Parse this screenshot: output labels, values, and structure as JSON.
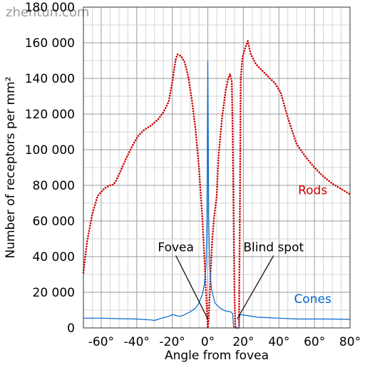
{
  "watermark": "zhentun.com",
  "chart_data": {
    "type": "line",
    "xlabel": "Angle from fovea",
    "ylabel": "Number of receptors per mm²",
    "xlim": [
      -70,
      80
    ],
    "ylim": [
      0,
      180000
    ],
    "x_ticks": [
      -60,
      -40,
      -20,
      0,
      20,
      40,
      60,
      80
    ],
    "x_tick_labels": [
      "-60°",
      "-40°",
      "-20°",
      "0°",
      "20°",
      "40°",
      "60°",
      "80°"
    ],
    "y_ticks": [
      0,
      20000,
      40000,
      60000,
      80000,
      100000,
      120000,
      140000,
      160000,
      180000
    ],
    "y_tick_labels": [
      "0",
      "20 000",
      "40 000",
      "60 000",
      "80 000",
      "100 000",
      "120 000",
      "140 000",
      "160 000",
      "180 000"
    ],
    "grid": true,
    "series": [
      {
        "name": "Rods",
        "color": "#cc0000",
        "style": "dotted",
        "points": [
          [
            -70,
            31000
          ],
          [
            -68,
            48000
          ],
          [
            -65,
            64000
          ],
          [
            -62,
            74000
          ],
          [
            -58,
            78500
          ],
          [
            -55,
            80000
          ],
          [
            -53,
            80500
          ],
          [
            -52,
            82000
          ],
          [
            -50,
            86000
          ],
          [
            -46,
            95000
          ],
          [
            -42,
            103000
          ],
          [
            -39,
            108000
          ],
          [
            -36,
            111000
          ],
          [
            -32,
            113500
          ],
          [
            -28,
            117000
          ],
          [
            -25,
            121000
          ],
          [
            -22,
            127000
          ],
          [
            -20,
            138000
          ],
          [
            -19,
            145000
          ],
          [
            -18,
            151000
          ],
          [
            -17,
            153500
          ],
          [
            -15,
            152500
          ],
          [
            -13,
            149000
          ],
          [
            -11,
            141000
          ],
          [
            -9,
            128000
          ],
          [
            -7,
            112000
          ],
          [
            -5,
            90000
          ],
          [
            -3,
            60000
          ],
          [
            -1.5,
            30000
          ],
          [
            -0.5,
            8000
          ],
          [
            0,
            0
          ],
          [
            0.5,
            5000
          ],
          [
            1.5,
            30000
          ],
          [
            2.5,
            50000
          ],
          [
            3.5,
            62000
          ],
          [
            5,
            74000
          ],
          [
            6,
            96000
          ],
          [
            8,
            118000
          ],
          [
            10,
            133000
          ],
          [
            11.5,
            140000
          ],
          [
            12.5,
            142500
          ],
          [
            13.5,
            138000
          ],
          [
            14,
            110000
          ],
          [
            14.5,
            60000
          ],
          [
            15,
            20000
          ],
          [
            15.5,
            0
          ],
          [
            17.5,
            0
          ],
          [
            18,
            60000
          ],
          [
            18.5,
            140000
          ],
          [
            19.5,
            152000
          ],
          [
            21,
            157000
          ],
          [
            22.5,
            161000
          ],
          [
            24,
            154000
          ],
          [
            27,
            148000
          ],
          [
            32,
            143000
          ],
          [
            38,
            137000
          ],
          [
            41,
            132000
          ],
          [
            45,
            118000
          ],
          [
            50,
            103000
          ],
          [
            55,
            96000
          ],
          [
            60,
            90000
          ],
          [
            65,
            85000
          ],
          [
            70,
            81000
          ],
          [
            75,
            78000
          ],
          [
            80,
            75000
          ]
        ]
      },
      {
        "name": "Cones",
        "color": "#0066cc",
        "style": "solid",
        "points": [
          [
            -70,
            5500
          ],
          [
            -60,
            5500
          ],
          [
            -50,
            5200
          ],
          [
            -40,
            5000
          ],
          [
            -32,
            4500
          ],
          [
            -30,
            4200
          ],
          [
            -26,
            5500
          ],
          [
            -22,
            6500
          ],
          [
            -20,
            7500
          ],
          [
            -18,
            7000
          ],
          [
            -16,
            6500
          ],
          [
            -14,
            7000
          ],
          [
            -10,
            9000
          ],
          [
            -7,
            11000
          ],
          [
            -5,
            14000
          ],
          [
            -3,
            19000
          ],
          [
            -2,
            24000
          ],
          [
            -1,
            35000
          ],
          [
            -0.5,
            60000
          ],
          [
            0,
            150000
          ],
          [
            0.5,
            60000
          ],
          [
            1,
            35000
          ],
          [
            2,
            22000
          ],
          [
            4,
            14000
          ],
          [
            7,
            11000
          ],
          [
            10,
            9500
          ],
          [
            13,
            9000
          ],
          [
            14,
            8000
          ],
          [
            14.5,
            0
          ],
          [
            17.5,
            0
          ],
          [
            18,
            7500
          ],
          [
            22,
            7000
          ],
          [
            28,
            6000
          ],
          [
            40,
            5500
          ],
          [
            50,
            5000
          ],
          [
            60,
            5000
          ],
          [
            70,
            5000
          ],
          [
            80,
            4800
          ]
        ]
      }
    ],
    "series_labels": [
      {
        "name": "Rods",
        "x": 59,
        "y": 75000
      },
      {
        "name": "Cones",
        "x": 59,
        "y": 14000
      }
    ],
    "annotations": [
      {
        "text": "Fovea",
        "text_x": -18,
        "text_y": 43000,
        "point_x": 0,
        "point_y": 5000
      },
      {
        "text": "Blind spot",
        "text_x": 37,
        "text_y": 43000,
        "point_x": 16.5,
        "point_y": 5000
      }
    ]
  }
}
